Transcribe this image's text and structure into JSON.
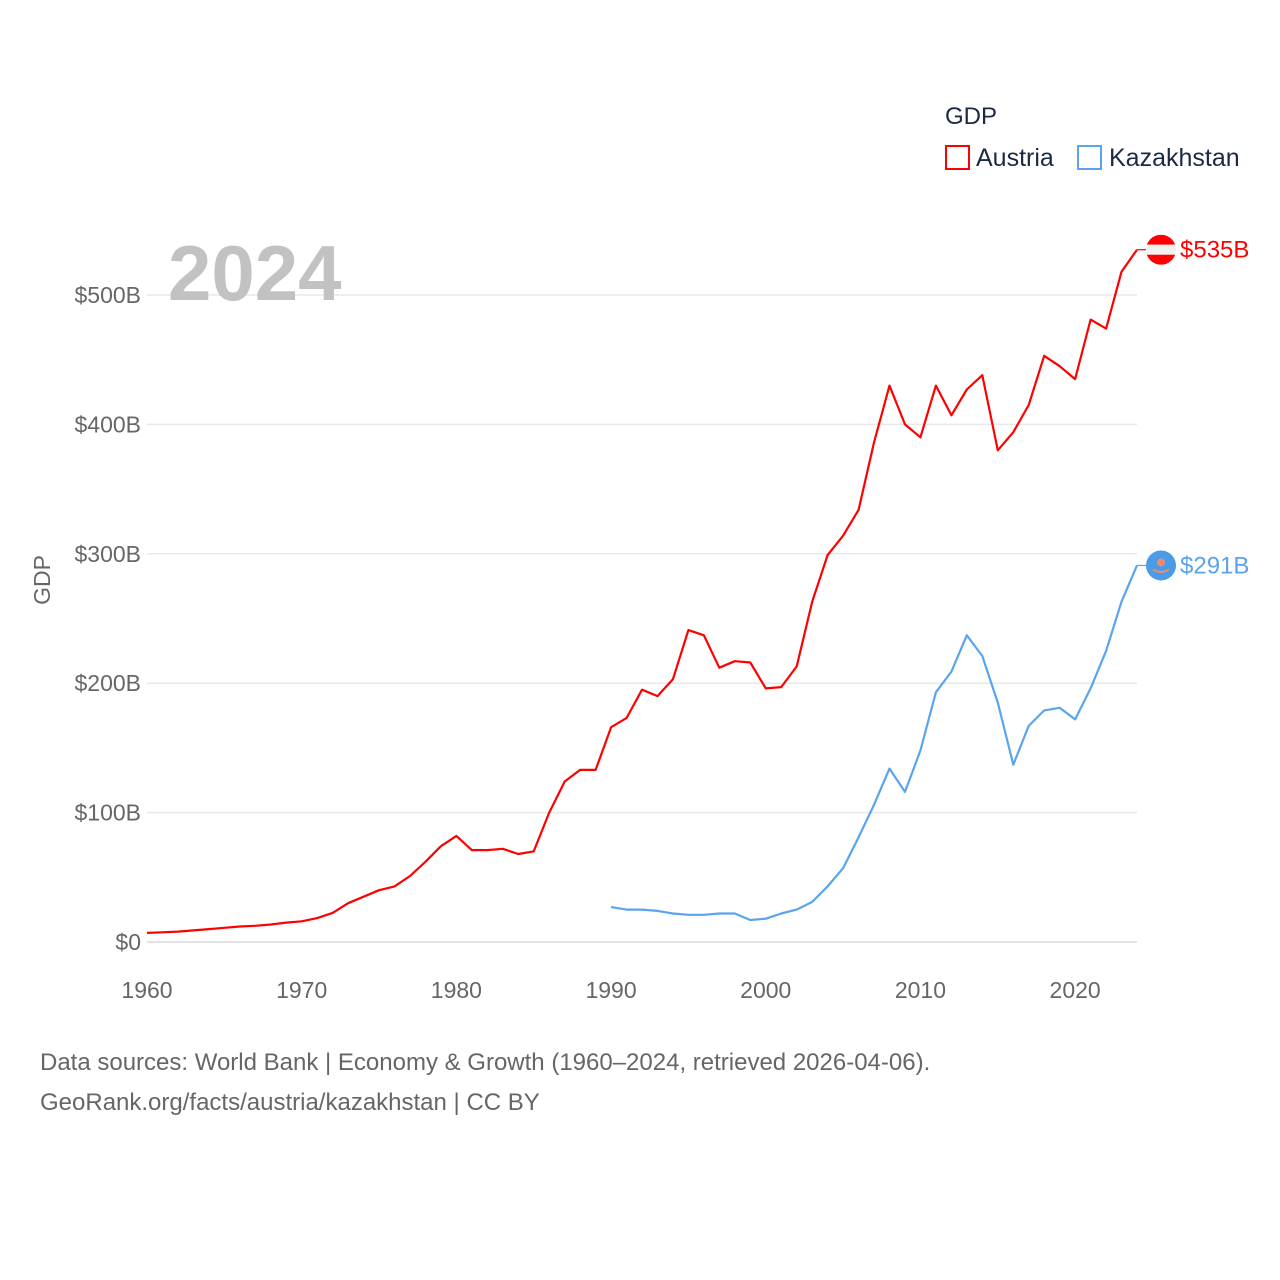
{
  "chart_data": {
    "type": "line",
    "legend_title": "GDP",
    "ylabel": "GDP",
    "xlabel": "",
    "year_label": "2024",
    "xlim": [
      1960,
      2024
    ],
    "ylim": [
      0,
      535
    ],
    "x_ticks": [
      1960,
      1970,
      1980,
      1990,
      2000,
      2010,
      2020
    ],
    "y_ticks": [
      0,
      100,
      200,
      300,
      400,
      500
    ],
    "y_tick_labels": [
      "$0",
      "$100B",
      "$200B",
      "$300B",
      "$400B",
      "$500B"
    ],
    "grid": true,
    "legend_position": "top-right",
    "series": [
      {
        "name": "Austria",
        "color": "#ff0000",
        "flag": "austria-flag",
        "end_label": "$535B",
        "x_start": 1960,
        "values": [
          7,
          7.5,
          8,
          9,
          10,
          11,
          12,
          12.5,
          13.5,
          15,
          16,
          18.5,
          22.5,
          30,
          35,
          40,
          43,
          51,
          62,
          74,
          82,
          71,
          71,
          72,
          68,
          70,
          100,
          124,
          133,
          133,
          166,
          173,
          195,
          190,
          203,
          241,
          237,
          212,
          217,
          216,
          196,
          197,
          213,
          263,
          299,
          314,
          334,
          386,
          430,
          400,
          390,
          430,
          407,
          427,
          438,
          380,
          394,
          415,
          453,
          445,
          435,
          481,
          474,
          518,
          535
        ]
      },
      {
        "name": "Kazakhstan",
        "color": "#5aa4ee",
        "flag": "kazakhstan-flag",
        "end_label": "$291B",
        "x_start": 1990,
        "values": [
          27,
          25,
          25,
          24,
          22,
          21,
          21,
          22,
          22,
          17,
          18,
          22,
          25,
          31,
          43,
          57,
          81,
          106,
          134,
          116,
          148,
          193,
          209,
          237,
          221,
          185,
          137,
          167,
          179,
          181,
          172,
          196,
          225,
          263,
          291
        ]
      }
    ]
  },
  "footer": {
    "line1": "Data sources: World Bank | Economy & Growth (1960–2024, retrieved 2026-04-06).",
    "line2": "GeoRank.org/facts/austria/kazakhstan | CC BY"
  }
}
